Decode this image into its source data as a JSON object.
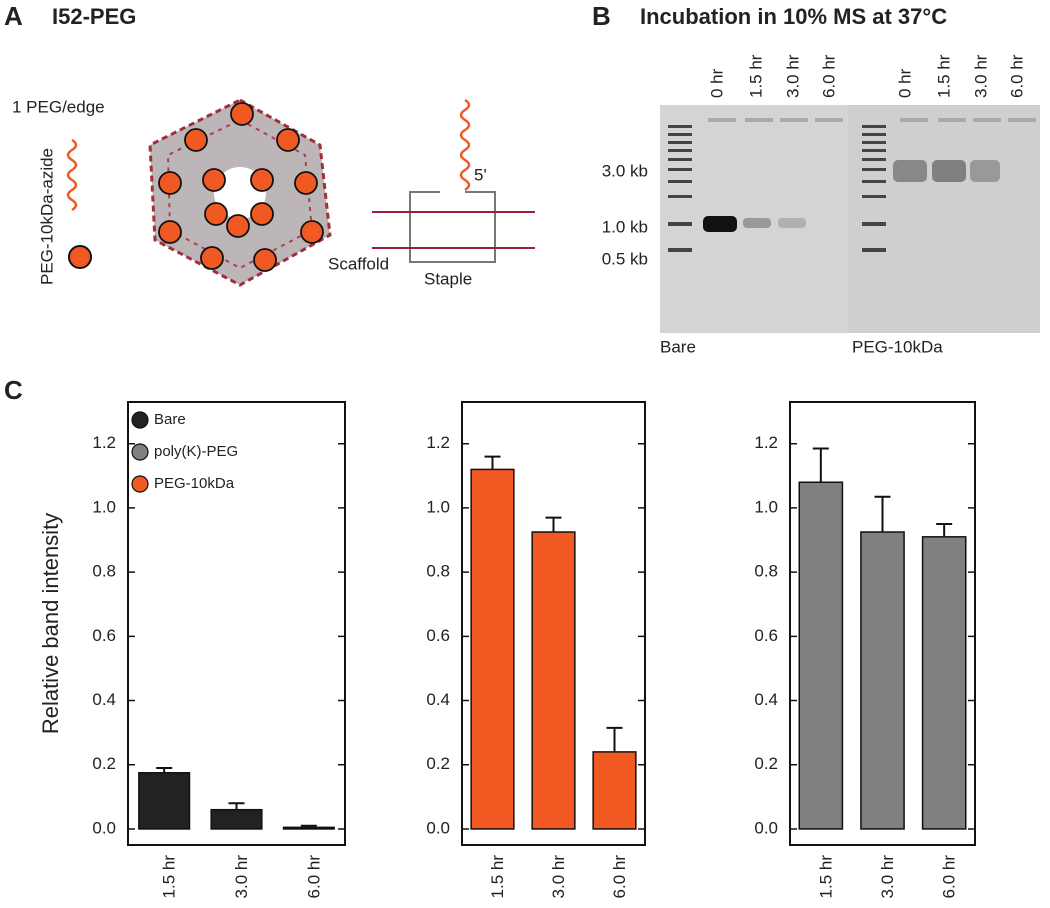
{
  "panel_a": {
    "letter": "A",
    "title": "I52-PEG",
    "per_edge": "1 PEG/edge",
    "peg_label": "PEG-10kDa-azide",
    "five_prime": "5'",
    "scaffold": "Scaffold",
    "staple": "Staple"
  },
  "panel_b": {
    "letter": "B",
    "title": "Incubation in 10% MS at 37°C",
    "lanes": [
      "0 hr",
      "1.5 hr",
      "3.0 hr",
      "6.0 hr",
      "0 hr",
      "1.5 hr",
      "3.0 hr",
      "6.0 hr"
    ],
    "sizes": [
      "3.0 kb",
      "1.0 kb",
      "0.5 kb"
    ],
    "groups": [
      "Bare",
      "PEG-10kDa"
    ]
  },
  "panel_c": {
    "letter": "C"
  },
  "chart_data": [
    {
      "type": "bar",
      "ylabel": "Relative band intensity",
      "legend": [
        {
          "name": "Bare",
          "color": "#222222"
        },
        {
          "name": "poly(K)-PEG",
          "color": "#808080"
        },
        {
          "name": "PEG-10kDa",
          "color": "#f05a22"
        }
      ],
      "categories": [
        "1.5 hr",
        "3.0 hr",
        "6.0 hr"
      ],
      "values": [
        0.175,
        0.06,
        0.005
      ],
      "errors": [
        0.015,
        0.02,
        0.005
      ],
      "color": "#222222",
      "ylim": [
        -0.05,
        1.33
      ],
      "yticks": [
        {
          "value": 0,
          "label": "0.0"
        },
        {
          "value": 0.2,
          "label": "0.2"
        },
        {
          "value": 0.4,
          "label": "0.4"
        },
        {
          "value": 0.6,
          "label": "0.6"
        },
        {
          "value": 0.8,
          "label": "0.8"
        },
        {
          "value": 1.0,
          "label": "1.0"
        },
        {
          "value": 1.2,
          "label": "1.2"
        }
      ]
    },
    {
      "type": "bar",
      "categories": [
        "1.5 hr",
        "3.0 hr",
        "6.0 hr"
      ],
      "values": [
        1.12,
        0.925,
        0.24
      ],
      "errors": [
        0.04,
        0.045,
        0.075
      ],
      "color": "#f05a22",
      "ylim": [
        -0.05,
        1.33
      ],
      "yticks": [
        {
          "value": 0,
          "label": "0.0"
        },
        {
          "value": 0.2,
          "label": "0.2"
        },
        {
          "value": 0.4,
          "label": "0.4"
        },
        {
          "value": 0.6,
          "label": "0.6"
        },
        {
          "value": 0.8,
          "label": "0.8"
        },
        {
          "value": 1.0,
          "label": "1.0"
        },
        {
          "value": 1.2,
          "label": "1.2"
        }
      ]
    },
    {
      "type": "bar",
      "categories": [
        "1.5 hr",
        "3.0 hr",
        "6.0 hr"
      ],
      "values": [
        1.08,
        0.925,
        0.91
      ],
      "errors": [
        0.105,
        0.11,
        0.04
      ],
      "color": "#808080",
      "ylim": [
        -0.05,
        1.33
      ],
      "yticks": [
        {
          "value": 0,
          "label": "0.0"
        },
        {
          "value": 0.2,
          "label": "0.2"
        },
        {
          "value": 0.4,
          "label": "0.4"
        },
        {
          "value": 0.6,
          "label": "0.6"
        },
        {
          "value": 0.8,
          "label": "0.8"
        },
        {
          "value": 1.0,
          "label": "1.0"
        },
        {
          "value": 1.2,
          "label": "1.2"
        }
      ]
    }
  ]
}
